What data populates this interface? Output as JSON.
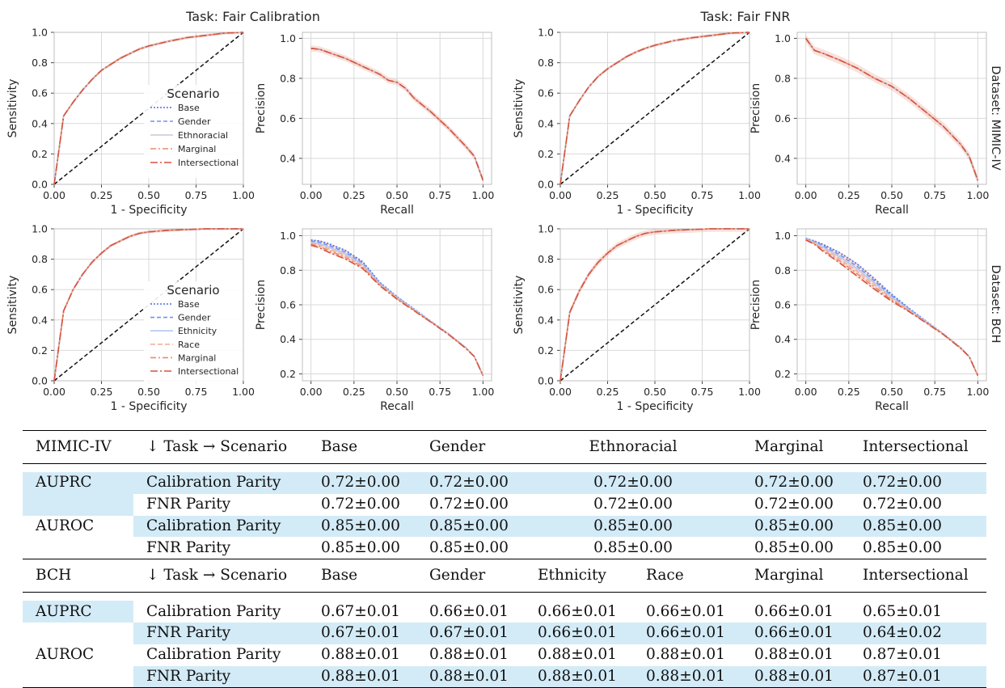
{
  "figure": {
    "col_titles": [
      "Task: Fair Calibration",
      "Task: Fair FNR"
    ],
    "row_labels": [
      "Dataset: MIMIC-IV",
      "Dataset: BCH"
    ],
    "legend_title": "Scenario"
  },
  "chart_data": [
    {
      "id": "mimic-cal-roc",
      "type": "line",
      "task": "Fair Calibration",
      "dataset": "MIMIC-IV",
      "xlabel": "1 - Specificity",
      "ylabel": "Sensitivity",
      "xlim": [
        0,
        1
      ],
      "ylim": [
        0,
        1
      ],
      "xticks": [
        "0.00",
        "0.25",
        "0.50",
        "0.75",
        "1.00"
      ],
      "yticks": [
        "0.0",
        "0.2",
        "0.4",
        "0.6",
        "0.8",
        "1.0"
      ],
      "x": [
        0,
        0.05,
        0.1,
        0.15,
        0.2,
        0.25,
        0.3,
        0.35,
        0.4,
        0.45,
        0.5,
        0.6,
        0.7,
        0.8,
        0.9,
        1.0
      ],
      "y": [
        0,
        0.45,
        0.54,
        0.62,
        0.69,
        0.75,
        0.79,
        0.83,
        0.86,
        0.89,
        0.91,
        0.94,
        0.965,
        0.98,
        0.995,
        1.0
      ],
      "reference_line": "diagonal",
      "band": 0.01,
      "series": [
        {
          "name": "Base"
        },
        {
          "name": "Gender"
        },
        {
          "name": "Ethnoracial"
        },
        {
          "name": "Marginal"
        },
        {
          "name": "Intersectional"
        }
      ],
      "legend": "lower-right",
      "grid": true
    },
    {
      "id": "mimic-cal-pr",
      "type": "line",
      "task": "Fair Calibration",
      "dataset": "MIMIC-IV",
      "xlabel": "Recall",
      "ylabel": "Precision",
      "xlim": [
        -0.05,
        1.05
      ],
      "ylim": [
        0.27,
        1.03
      ],
      "xticks": [
        "0.00",
        "0.25",
        "0.50",
        "0.75",
        "1.00"
      ],
      "yticks": [
        "0.4",
        "0.6",
        "0.8",
        "1.0"
      ],
      "x": [
        0,
        0.05,
        0.1,
        0.2,
        0.3,
        0.4,
        0.45,
        0.5,
        0.55,
        0.6,
        0.7,
        0.8,
        0.9,
        0.95,
        1.0
      ],
      "y": [
        0.95,
        0.945,
        0.93,
        0.9,
        0.86,
        0.82,
        0.79,
        0.78,
        0.75,
        0.7,
        0.63,
        0.55,
        0.46,
        0.41,
        0.29
      ],
      "band": 0.015,
      "grid": true
    },
    {
      "id": "mimic-fnr-roc",
      "type": "line",
      "task": "Fair FNR",
      "dataset": "MIMIC-IV",
      "xlabel": "1 - Specificity",
      "ylabel": "Sensitivity",
      "xlim": [
        0,
        1
      ],
      "ylim": [
        0,
        1
      ],
      "xticks": [
        "0.00",
        "0.25",
        "0.50",
        "0.75",
        "1.00"
      ],
      "yticks": [
        "0.0",
        "0.2",
        "0.4",
        "0.6",
        "0.8",
        "1.0"
      ],
      "x": [
        0,
        0.05,
        0.1,
        0.15,
        0.2,
        0.25,
        0.3,
        0.35,
        0.4,
        0.45,
        0.5,
        0.6,
        0.7,
        0.8,
        0.9,
        1.0
      ],
      "y": [
        0,
        0.45,
        0.55,
        0.64,
        0.71,
        0.76,
        0.8,
        0.84,
        0.87,
        0.895,
        0.915,
        0.945,
        0.965,
        0.98,
        0.995,
        1.0
      ],
      "reference_line": "diagonal",
      "band": 0.01,
      "grid": true
    },
    {
      "id": "mimic-fnr-pr",
      "type": "line",
      "task": "Fair FNR",
      "dataset": "MIMIC-IV",
      "xlabel": "Recall",
      "ylabel": "Precision",
      "xlim": [
        -0.05,
        1.05
      ],
      "ylim": [
        0.27,
        1.03
      ],
      "xticks": [
        "0.00",
        "0.25",
        "0.50",
        "0.75",
        "1.00"
      ],
      "yticks": [
        "0.4",
        "0.6",
        "0.8",
        "1.0"
      ],
      "x": [
        0,
        0.05,
        0.1,
        0.2,
        0.3,
        0.4,
        0.5,
        0.6,
        0.7,
        0.8,
        0.9,
        0.95,
        1.0
      ],
      "y": [
        1.0,
        0.94,
        0.925,
        0.89,
        0.85,
        0.8,
        0.76,
        0.7,
        0.63,
        0.56,
        0.47,
        0.41,
        0.29
      ],
      "band": 0.02,
      "grid": true
    },
    {
      "id": "bch-cal-roc",
      "type": "line",
      "task": "Fair Calibration",
      "dataset": "BCH",
      "xlabel": "1 - Specificity",
      "ylabel": "Sensitivity",
      "xlim": [
        0,
        1
      ],
      "ylim": [
        0,
        1
      ],
      "xticks": [
        "0.00",
        "0.25",
        "0.50",
        "0.75",
        "1.00"
      ],
      "yticks": [
        "0.0",
        "0.2",
        "0.4",
        "0.6",
        "0.8",
        "1.0"
      ],
      "x": [
        0,
        0.05,
        0.1,
        0.15,
        0.2,
        0.25,
        0.3,
        0.35,
        0.4,
        0.45,
        0.5,
        0.6,
        0.7,
        0.8,
        0.9,
        1.0
      ],
      "y": [
        0,
        0.46,
        0.6,
        0.7,
        0.78,
        0.84,
        0.89,
        0.92,
        0.95,
        0.97,
        0.98,
        0.99,
        0.995,
        1.0,
        1.0,
        1.0
      ],
      "reference_line": "diagonal",
      "band": 0.01,
      "series": [
        {
          "name": "Base"
        },
        {
          "name": "Gender"
        },
        {
          "name": "Ethnicity"
        },
        {
          "name": "Race"
        },
        {
          "name": "Marginal"
        },
        {
          "name": "Intersectional"
        }
      ],
      "legend": "lower-right",
      "grid": true
    },
    {
      "id": "bch-cal-pr",
      "type": "line",
      "task": "Fair Calibration",
      "dataset": "BCH",
      "xlabel": "Recall",
      "ylabel": "Precision",
      "xlim": [
        -0.05,
        1.05
      ],
      "ylim": [
        0.16,
        1.04
      ],
      "xticks": [
        "0.00",
        "0.25",
        "0.50",
        "0.75",
        "1.00"
      ],
      "yticks": [
        "0.2",
        "0.4",
        "0.6",
        "0.8",
        "1.0"
      ],
      "x": [
        0,
        0.05,
        0.1,
        0.2,
        0.3,
        0.4,
        0.5,
        0.6,
        0.7,
        0.8,
        0.9,
        0.95,
        1.0
      ],
      "y": [
        0.96,
        0.95,
        0.93,
        0.89,
        0.83,
        0.72,
        0.64,
        0.57,
        0.5,
        0.43,
        0.35,
        0.3,
        0.19
      ],
      "spread": [
        0.03,
        0.04,
        0.05,
        0.05,
        0.04,
        0.02,
        0.015,
        0.01,
        0.005,
        0.005,
        0.005,
        0.0,
        0.0
      ],
      "grid": true
    },
    {
      "id": "bch-fnr-roc",
      "type": "line",
      "task": "Fair FNR",
      "dataset": "BCH",
      "xlabel": "1 - Specificity",
      "ylabel": "Sensitivity",
      "xlim": [
        0,
        1
      ],
      "ylim": [
        0,
        1
      ],
      "xticks": [
        "0.00",
        "0.25",
        "0.50",
        "0.75",
        "1.00"
      ],
      "yticks": [
        "0.0",
        "0.2",
        "0.4",
        "0.6",
        "0.8",
        "1.0"
      ],
      "x": [
        0,
        0.05,
        0.1,
        0.15,
        0.2,
        0.25,
        0.3,
        0.35,
        0.4,
        0.45,
        0.5,
        0.6,
        0.7,
        0.8,
        0.9,
        1.0
      ],
      "y": [
        0,
        0.45,
        0.59,
        0.7,
        0.78,
        0.84,
        0.89,
        0.92,
        0.95,
        0.97,
        0.98,
        0.99,
        0.995,
        1.0,
        1.0,
        1.0
      ],
      "reference_line": "diagonal",
      "band": 0.02,
      "grid": true
    },
    {
      "id": "bch-fnr-pr",
      "type": "line",
      "task": "Fair FNR",
      "dataset": "BCH",
      "xlabel": "Recall",
      "ylabel": "Precision",
      "xlim": [
        -0.05,
        1.05
      ],
      "ylim": [
        0.16,
        1.04
      ],
      "xticks": [
        "0.00",
        "0.25",
        "0.50",
        "0.75",
        "1.00"
      ],
      "yticks": [
        "0.2",
        "0.4",
        "0.6",
        "0.8",
        "1.0"
      ],
      "x": [
        0,
        0.05,
        0.1,
        0.2,
        0.3,
        0.4,
        0.5,
        0.6,
        0.7,
        0.8,
        0.9,
        0.95,
        1.0
      ],
      "y": [
        0.98,
        0.96,
        0.93,
        0.87,
        0.8,
        0.72,
        0.64,
        0.57,
        0.5,
        0.43,
        0.35,
        0.3,
        0.19
      ],
      "spread": [
        0.01,
        0.02,
        0.04,
        0.06,
        0.07,
        0.06,
        0.04,
        0.02,
        0.01,
        0.005,
        0.005,
        0.0,
        0.0
      ],
      "grid": true
    }
  ],
  "colors": {
    "Base": "#4a6fe3",
    "Gender": "#6f93f5",
    "Ethnoracial": "#c8c8d6",
    "Ethnicity": "#b4c8f0",
    "Race": "#f0b19a",
    "Marginal": "#ec8b6a",
    "Intersectional": "#d5543f",
    "diagonal": "#111111",
    "grid": "#d9d9d9",
    "highlight": "#d3ebf7"
  },
  "tables": {
    "mimic": {
      "header": [
        "MIMIC-IV",
        "↓ Task → Scenario",
        "Base",
        "Gender",
        "Ethnoracial",
        "Marginal",
        "Intersectional"
      ],
      "rows": [
        {
          "metric": "AUPRC",
          "task": "Calibration Parity",
          "vals": [
            "0.72±0.00",
            "0.72±0.00",
            "0.72±0.00",
            "0.72±0.00",
            "0.72±0.00"
          ]
        },
        {
          "metric": "",
          "task": "FNR Parity",
          "vals": [
            "0.72±0.00",
            "0.72±0.00",
            "0.72±0.00",
            "0.72±0.00",
            "0.72±0.00"
          ]
        },
        {
          "metric": "AUROC",
          "task": "Calibration Parity",
          "vals": [
            "0.85±0.00",
            "0.85±0.00",
            "0.85±0.00",
            "0.85±0.00",
            "0.85±0.00"
          ]
        },
        {
          "metric": "",
          "task": "FNR Parity",
          "vals": [
            "0.85±0.00",
            "0.85±0.00",
            "0.85±0.00",
            "0.85±0.00",
            "0.85±0.00"
          ]
        }
      ]
    },
    "bch": {
      "header": [
        "BCH",
        "↓ Task → Scenario",
        "Base",
        "Gender",
        "Ethnicity",
        "Race",
        "Marginal",
        "Intersectional"
      ],
      "rows": [
        {
          "metric": "AUPRC",
          "task": "Calibration Parity",
          "vals": [
            "0.67±0.01",
            "0.66±0.01",
            "0.66±0.01",
            "0.66±0.01",
            "0.66±0.01",
            "0.65±0.01"
          ]
        },
        {
          "metric": "",
          "task": "FNR Parity",
          "vals": [
            "0.67±0.01",
            "0.67±0.01",
            "0.66±0.01",
            "0.66±0.01",
            "0.66±0.01",
            "0.64±0.02"
          ]
        },
        {
          "metric": "AUROC",
          "task": "Calibration Parity",
          "vals": [
            "0.88±0.01",
            "0.88±0.01",
            "0.88±0.01",
            "0.88±0.01",
            "0.88±0.01",
            "0.87±0.01"
          ]
        },
        {
          "metric": "",
          "task": "FNR Parity",
          "vals": [
            "0.88±0.01",
            "0.88±0.01",
            "0.88±0.01",
            "0.88±0.01",
            "0.88±0.01",
            "0.87±0.01"
          ]
        }
      ]
    }
  }
}
